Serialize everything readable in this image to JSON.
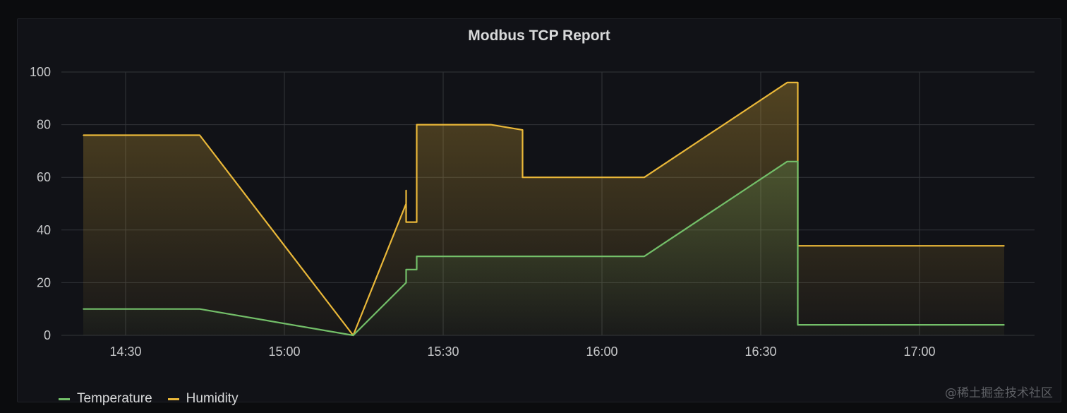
{
  "panel": {
    "title": "Modbus TCP Report",
    "watermark": "@稀土掘金技术社区"
  },
  "chart_data": {
    "type": "area",
    "title": "Modbus TCP Report",
    "xlabel": "",
    "ylabel": "",
    "ylim": [
      0,
      100
    ],
    "yticks": [
      "0",
      "20",
      "40",
      "60",
      "80",
      "100"
    ],
    "xticks": [
      "14:30",
      "15:00",
      "15:30",
      "16:00",
      "16:30",
      "17:00"
    ],
    "grid": true,
    "legend_position": "bottom-left",
    "series": [
      {
        "name": "Temperature",
        "color": "#73bf69",
        "points": [
          [
            "14:22",
            10
          ],
          [
            "14:44",
            10
          ],
          [
            "15:13",
            0
          ],
          [
            "15:23",
            20
          ],
          [
            "15:23",
            25
          ],
          [
            "15:25",
            25
          ],
          [
            "15:25",
            30
          ],
          [
            "16:08",
            30
          ],
          [
            "16:35",
            66
          ],
          [
            "16:37",
            66
          ],
          [
            "16:37",
            4
          ],
          [
            "17:16",
            4
          ]
        ]
      },
      {
        "name": "Humidity",
        "color": "#eab839",
        "points": [
          [
            "14:22",
            76
          ],
          [
            "14:44",
            76
          ],
          [
            "15:13",
            0
          ],
          [
            "15:23",
            50
          ],
          [
            "15:23",
            55
          ],
          [
            "15:23",
            43
          ],
          [
            "15:25",
            43
          ],
          [
            "15:25",
            80
          ],
          [
            "15:39",
            80
          ],
          [
            "15:45",
            78
          ],
          [
            "15:45",
            60
          ],
          [
            "16:08",
            60
          ],
          [
            "16:35",
            96
          ],
          [
            "16:37",
            96
          ],
          [
            "16:37",
            34
          ],
          [
            "17:16",
            34
          ]
        ]
      }
    ]
  }
}
